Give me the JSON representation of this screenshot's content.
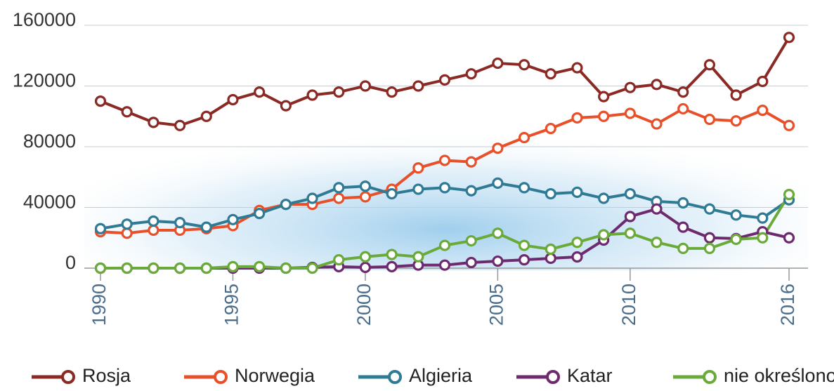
{
  "chart_data": {
    "type": "line",
    "x": [
      1990,
      1991,
      1992,
      1993,
      1994,
      1995,
      1996,
      1997,
      1998,
      1999,
      2000,
      2001,
      2002,
      2003,
      2004,
      2005,
      2006,
      2007,
      2008,
      2009,
      2010,
      2011,
      2012,
      2013,
      2014,
      2015,
      2016
    ],
    "series": [
      {
        "name": "Rosja",
        "color": "#8b2a24",
        "values": [
          110000,
          103000,
          96000,
          94000,
          100000,
          111000,
          116000,
          107000,
          114000,
          116000,
          120000,
          116000,
          120000,
          124000,
          128000,
          135000,
          134000,
          128000,
          132000,
          113000,
          119000,
          121000,
          116000,
          134000,
          114000,
          123000,
          152000
        ]
      },
      {
        "name": "Norwegia",
        "color": "#e8502a",
        "values": [
          24000,
          23000,
          25000,
          25000,
          26000,
          28000,
          38000,
          42000,
          42000,
          46000,
          47000,
          52000,
          66000,
          71000,
          70000,
          79000,
          86000,
          92000,
          99000,
          100000,
          102000,
          95000,
          105000,
          98000,
          97000,
          104000,
          94000
        ]
      },
      {
        "name": "Algieria",
        "color": "#2f7a94",
        "values": [
          26000,
          29000,
          31000,
          30000,
          27000,
          32000,
          36000,
          42000,
          46000,
          53000,
          54000,
          49000,
          52000,
          53000,
          51000,
          56000,
          53000,
          49000,
          50000,
          46000,
          49000,
          44000,
          43000,
          39000,
          35000,
          33000,
          45000
        ]
      },
      {
        "name": "Katar",
        "color": "#6e2a6e",
        "values": [
          0,
          0,
          0,
          0,
          0,
          0,
          0,
          0,
          500,
          1000,
          500,
          1000,
          2000,
          2000,
          3700,
          4600,
          5500,
          6500,
          7400,
          18500,
          34000,
          39000,
          27000,
          20000,
          19500,
          24000,
          20000
        ]
      },
      {
        "name": "nie określono",
        "color": "#6aaa3a",
        "values": [
          0,
          0,
          0,
          0,
          0,
          1000,
          1000,
          0,
          0,
          5500,
          7500,
          9000,
          7500,
          15000,
          18000,
          23000,
          15000,
          12500,
          17000,
          22000,
          23000,
          17000,
          13000,
          13000,
          19000,
          20000,
          48500
        ]
      }
    ],
    "xlim": [
      1990,
      2016
    ],
    "xticks": [
      1990,
      1995,
      2000,
      2005,
      2010,
      2016
    ],
    "ylim": [
      0,
      160000
    ],
    "yticks": [
      0,
      40000,
      80000,
      120000,
      160000
    ],
    "grid": true,
    "legend": "bottom"
  }
}
